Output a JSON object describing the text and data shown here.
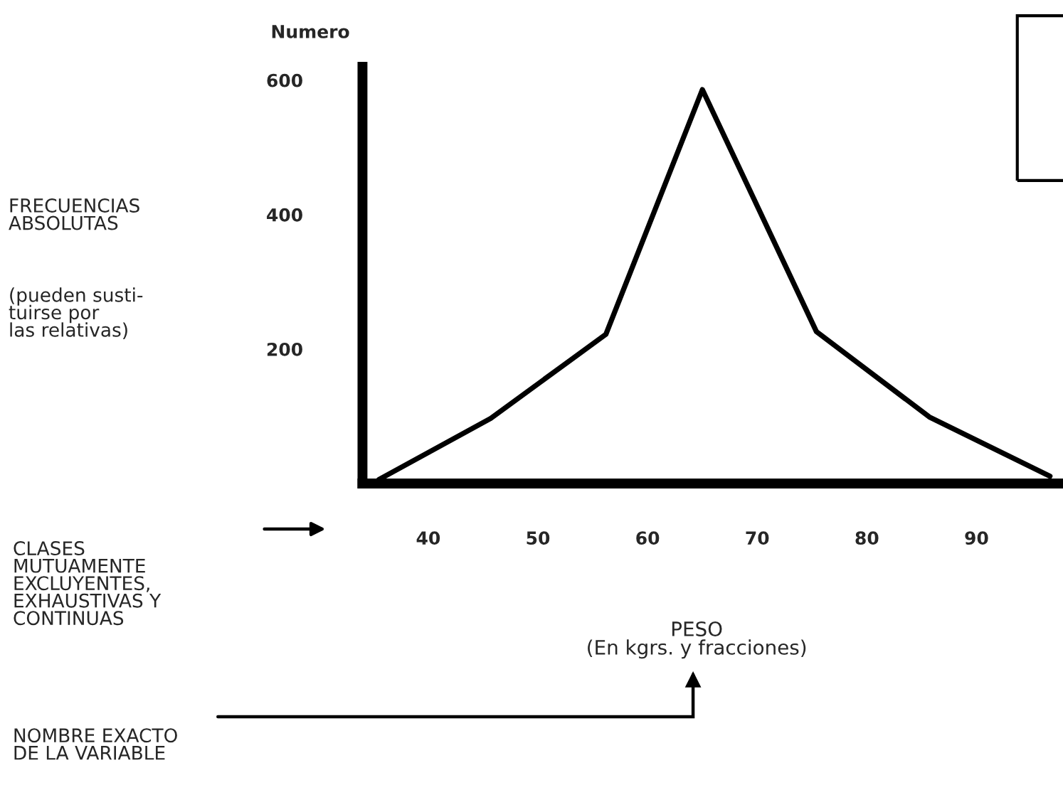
{
  "chart_data": {
    "type": "line",
    "ylabel": "Numero",
    "xlabel": "PESO\n(En kgrs. y fracciones)",
    "x": [
      35.5,
      45.7,
      56.2,
      65,
      75.4,
      85.7,
      96.7
    ],
    "series": [
      {
        "color": "#000000",
        "values": [
          6,
          97,
          222,
          586,
          226,
          99,
          11
        ]
      }
    ],
    "xlim": [
      34,
      97.5
    ],
    "xticks": [
      40,
      50,
      60,
      70,
      80,
      90
    ],
    "ylim": [
      0,
      620
    ],
    "yticks": [
      200,
      400,
      600
    ],
    "grid": false,
    "legend": false,
    "marker": "none",
    "line_style": "solid",
    "annotations": [
      "FRECUENCIAS\nABSOLUTAS",
      "(pueden susti-\ntuirse por\nlas relativas)",
      "CLASES\nMUTUAMENTE\nEXCLUYENTES,\nEXHAUSTIVAS Y\nCONTINUAS",
      "NOMBRE EXACTO\nDE LA VARIABLE"
    ]
  }
}
